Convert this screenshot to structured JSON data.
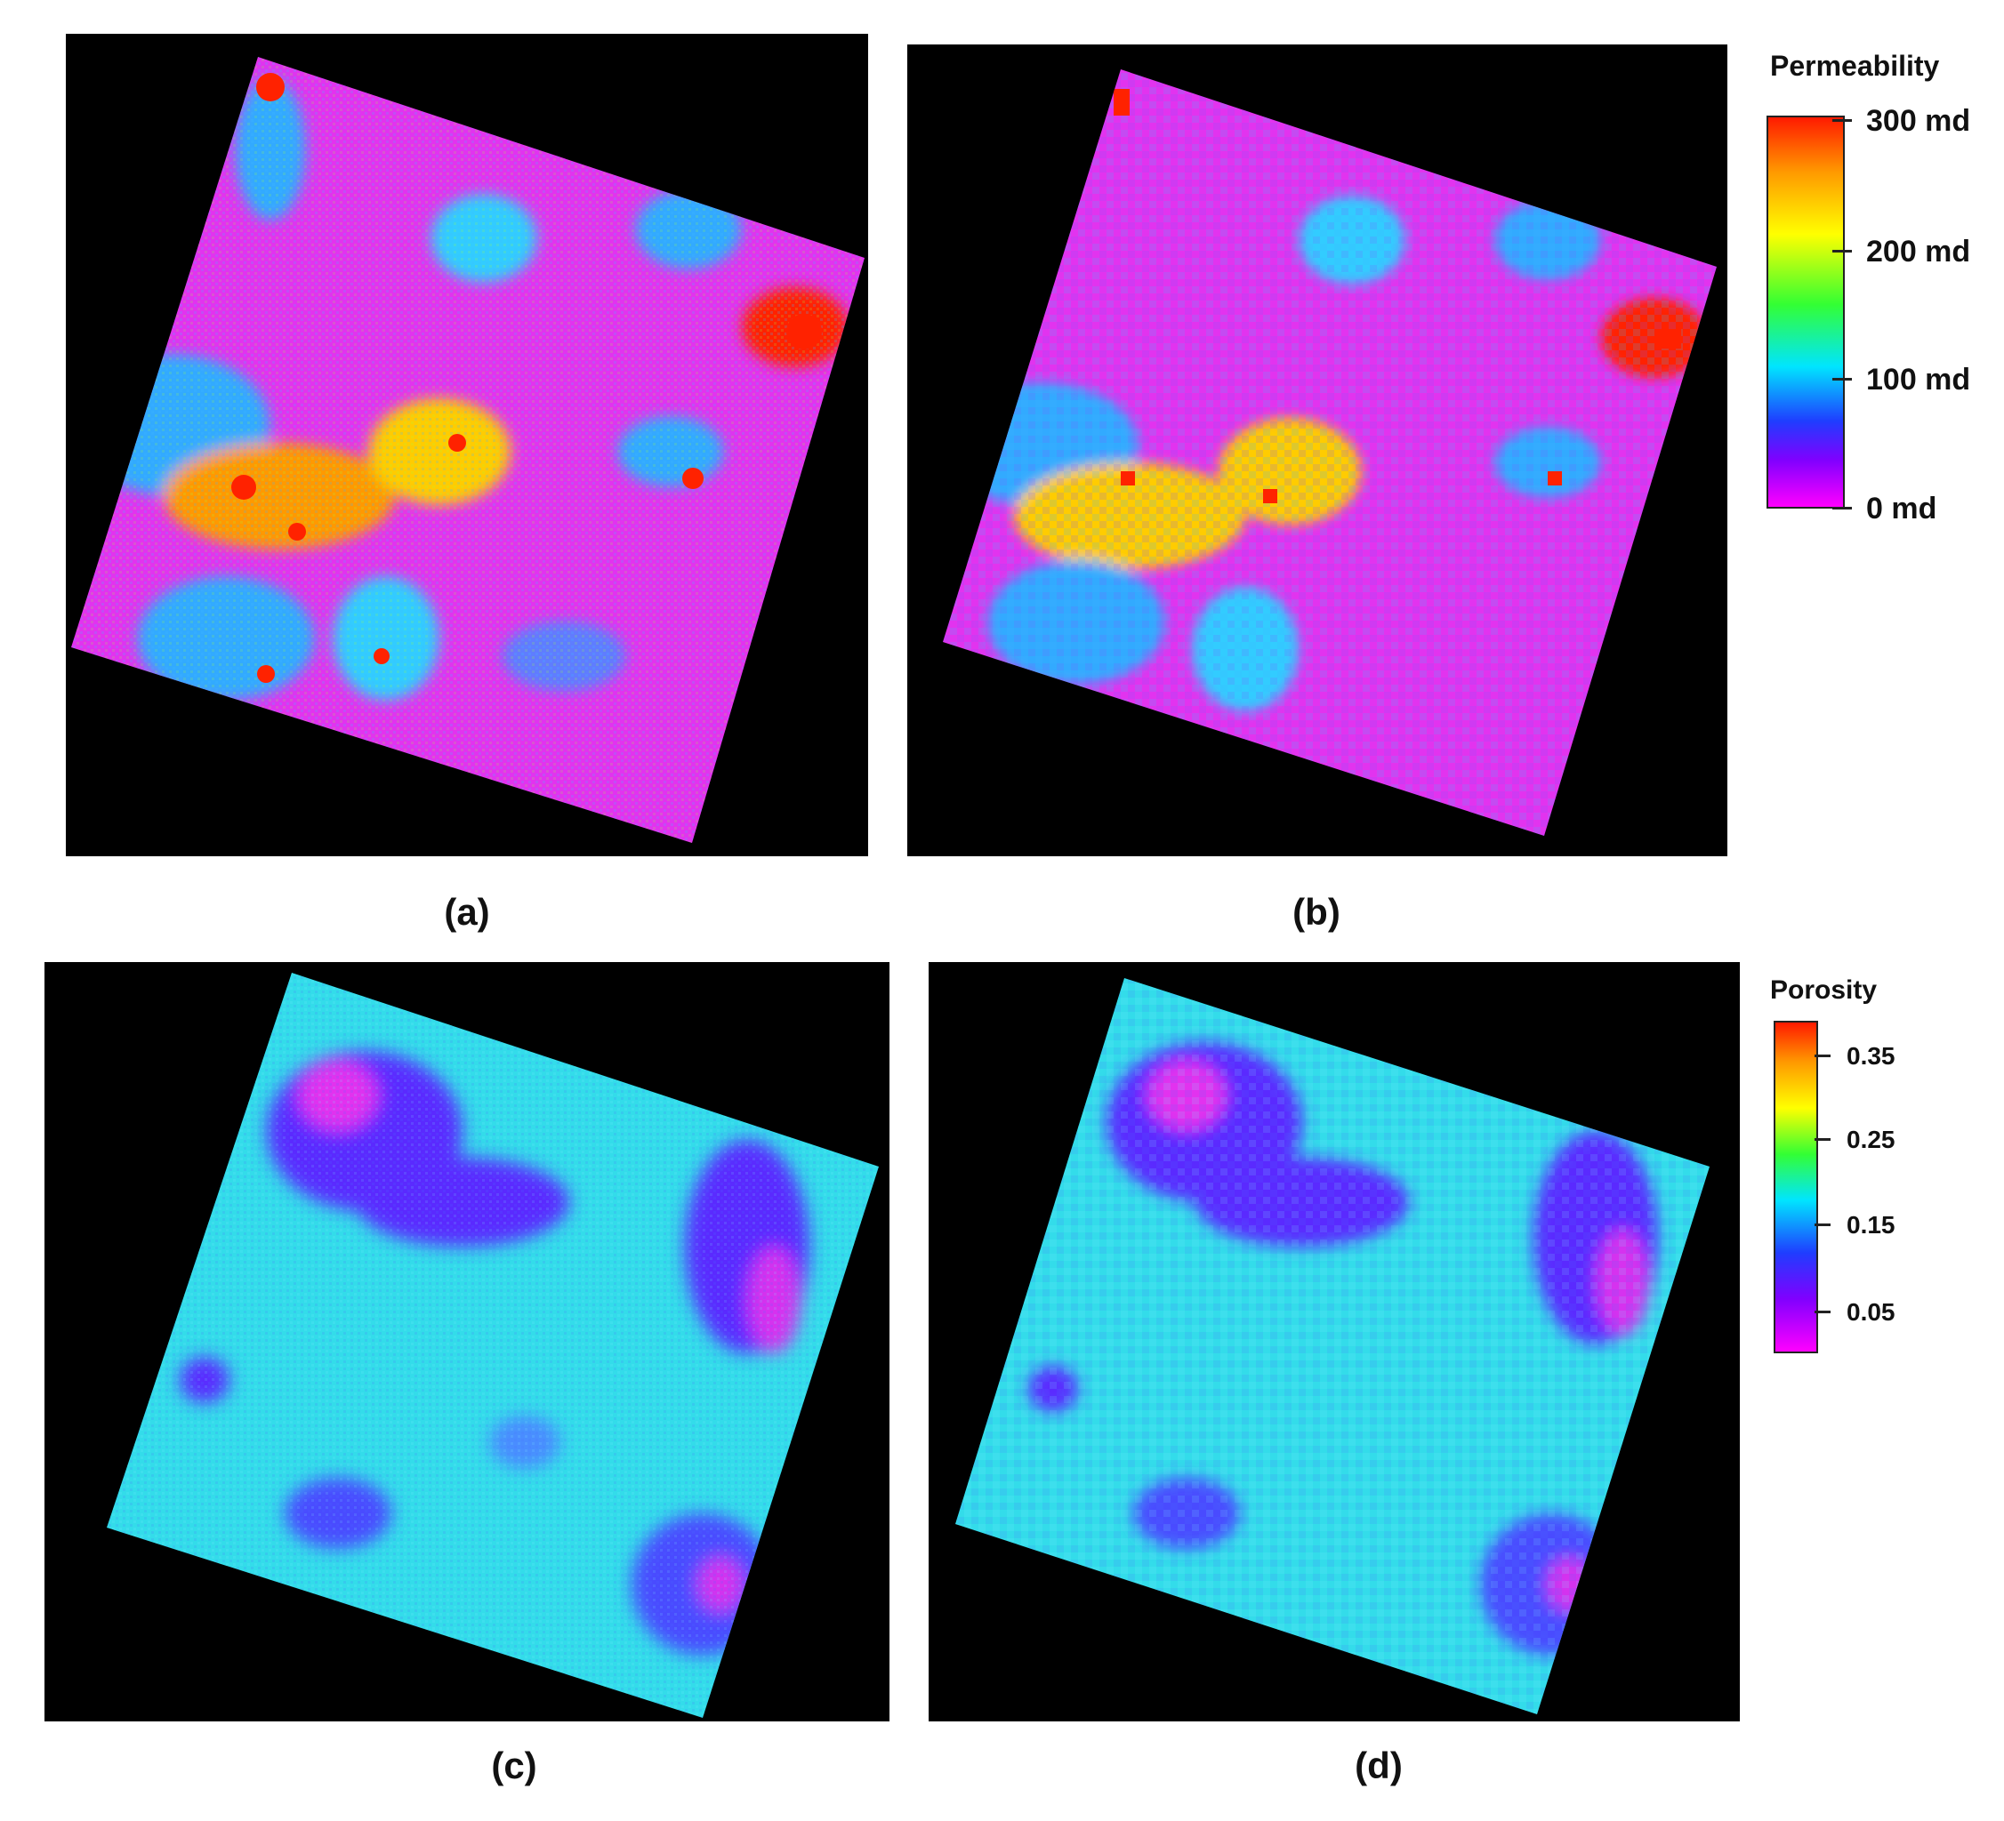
{
  "panels": [
    {
      "label": "(a)",
      "field": "permeability",
      "resolution": "fine"
    },
    {
      "label": "(b)",
      "field": "permeability",
      "resolution": "coarse"
    },
    {
      "label": "(c)",
      "field": "porosity",
      "resolution": "fine"
    },
    {
      "label": "(d)",
      "field": "porosity",
      "resolution": "coarse"
    }
  ],
  "legends": {
    "permeability": {
      "title": "Permeability",
      "ticks": [
        "300 md",
        "200 md",
        "100 md",
        "0 md"
      ],
      "colors": [
        "#ff1a00",
        "#ff9900",
        "#ffff00",
        "#33ff33",
        "#00e5ff",
        "#1f3dff",
        "#8000ff",
        "#ff00ff"
      ]
    },
    "porosity": {
      "title": "Porosity",
      "ticks": [
        "0.35",
        "0.25",
        "0.15",
        "0.05"
      ],
      "colors": [
        "#ff1a00",
        "#ff9900",
        "#ffff00",
        "#33ff33",
        "#00e5ff",
        "#1f3dff",
        "#8000ff",
        "#ff00ff"
      ]
    }
  },
  "colors": {
    "background_panel": "#000000",
    "perm_base": "#e233ef",
    "poro_base": "#33dcea"
  }
}
